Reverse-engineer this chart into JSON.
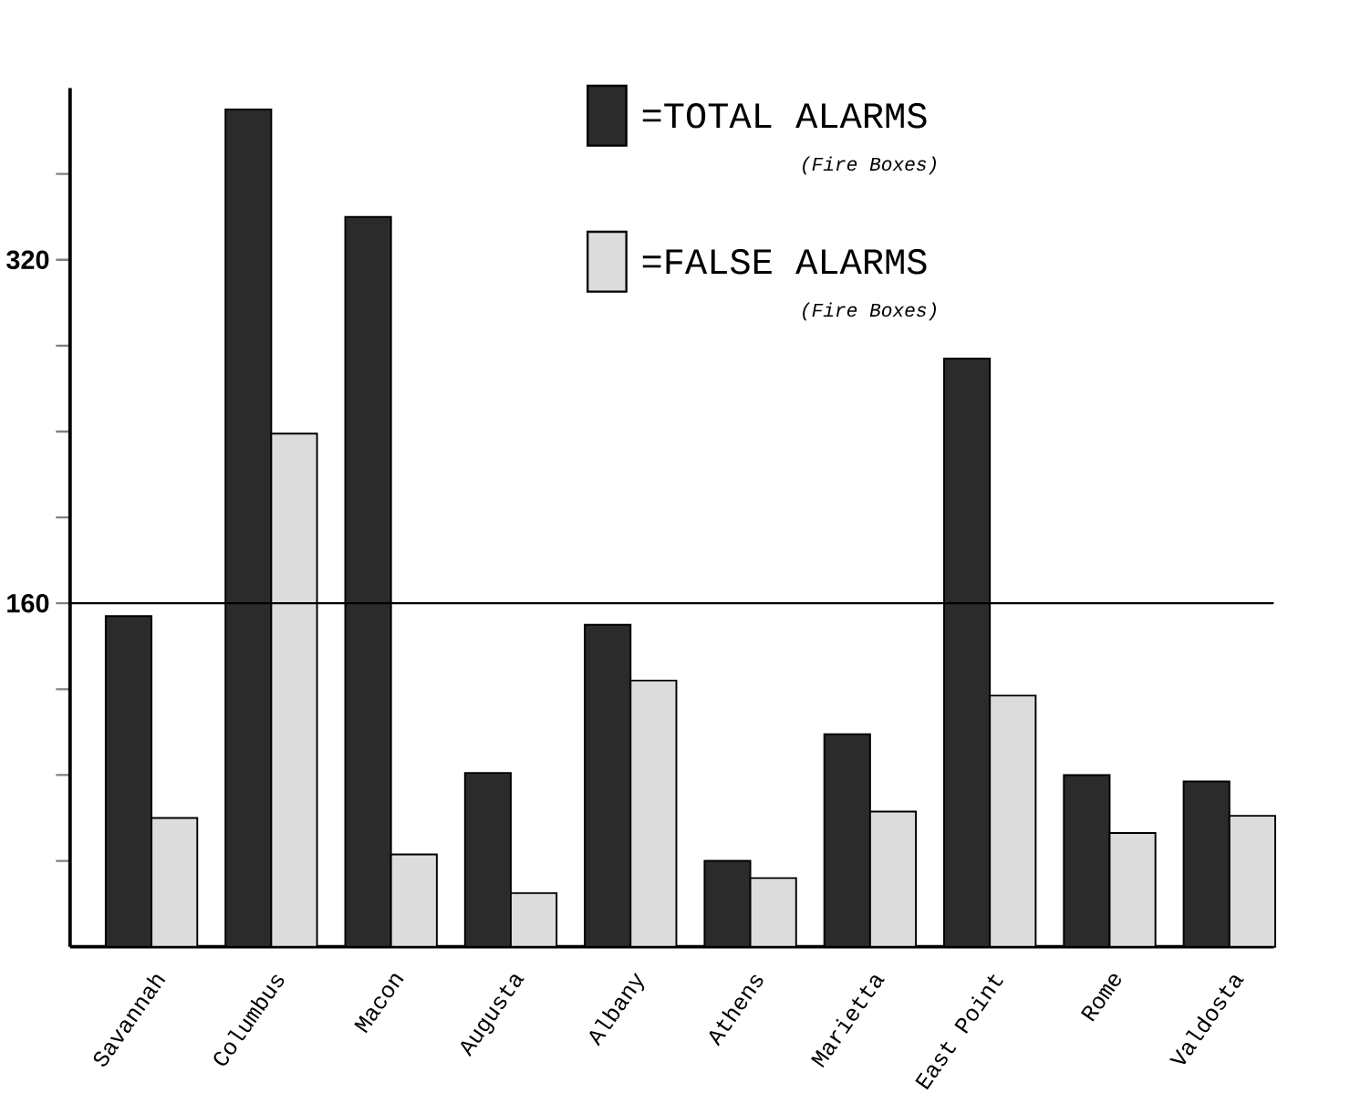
{
  "chart_data": {
    "type": "bar",
    "categories": [
      "Savannah",
      "Columbus",
      "Macon",
      "Augusta",
      "Albany",
      "Athens",
      "Marietta",
      "East Point",
      "Rome",
      "Valdosta"
    ],
    "series": [
      {
        "name": "=TOTAL ALARMS",
        "color": "#2b2b2b",
        "values": [
          154,
          390,
          340,
          81,
          150,
          40,
          99,
          274,
          80,
          77
        ]
      },
      {
        "name": "=FALSE ALARMS",
        "color": "#dcdcdc",
        "values": [
          60,
          239,
          43,
          25,
          124,
          32,
          63,
          117,
          53,
          61
        ]
      }
    ],
    "annotations": [
      "(Fire Boxes)",
      "(Fire Boxes)"
    ],
    "ylim": [
      0,
      400
    ],
    "yticks": [
      {
        "value": 40,
        "label": null
      },
      {
        "value": 80,
        "label": null
      },
      {
        "value": 120,
        "label": null
      },
      160,
      {
        "value": 200,
        "label": null
      },
      {
        "value": 240,
        "label": null
      },
      {
        "value": 280,
        "label": null
      },
      320,
      {
        "value": 360,
        "label": null
      }
    ],
    "ref_lines": [
      {
        "axis": "y",
        "value": 160
      }
    ],
    "legend": "top"
  }
}
